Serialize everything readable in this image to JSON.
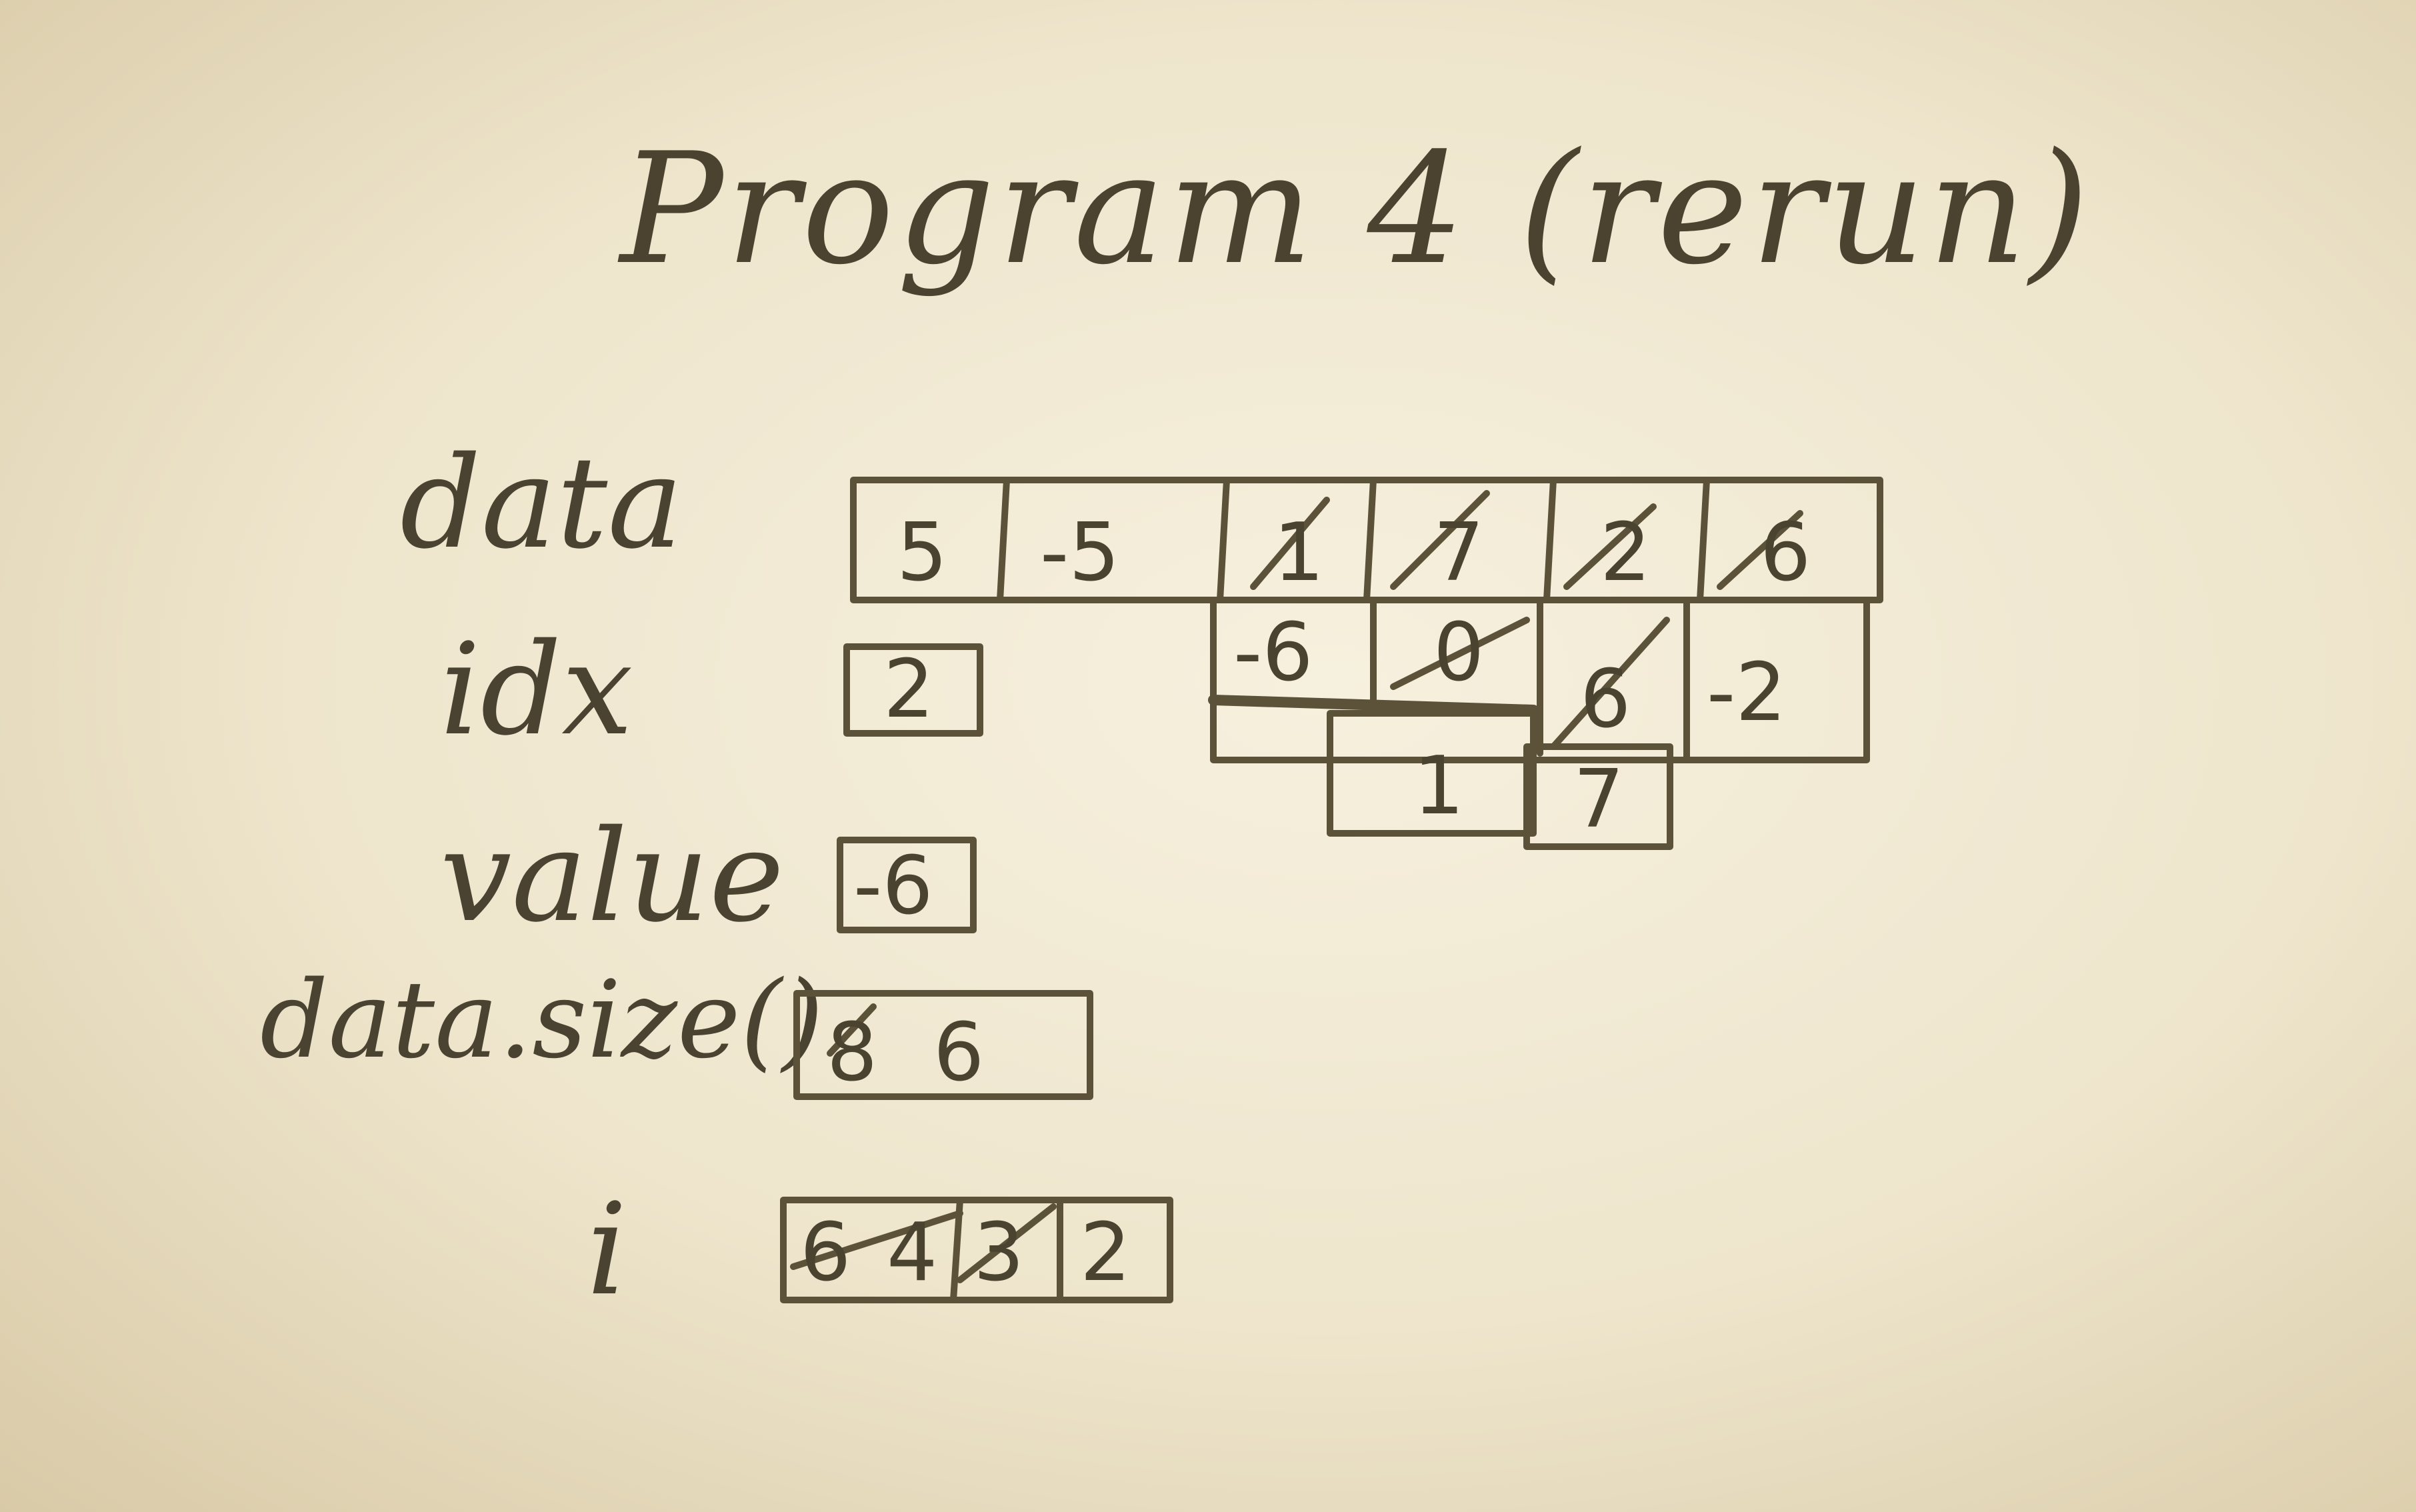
{
  "title": "Program 4 (rerun)",
  "labels": {
    "data": "data",
    "idx": "idx",
    "value": "value",
    "data_size": "data.size()",
    "i": "i"
  },
  "data_cells": {
    "row1": [
      "5",
      "-5",
      "1",
      "7",
      "2",
      "6"
    ],
    "row2": [
      "-6",
      "0",
      "6",
      "-2"
    ],
    "row3": [
      "1",
      "7"
    ]
  },
  "idx_value": "2",
  "value_value": "-6",
  "size_values": [
    "8",
    "6"
  ],
  "i_values": [
    "6",
    "4",
    "3",
    "2"
  ]
}
